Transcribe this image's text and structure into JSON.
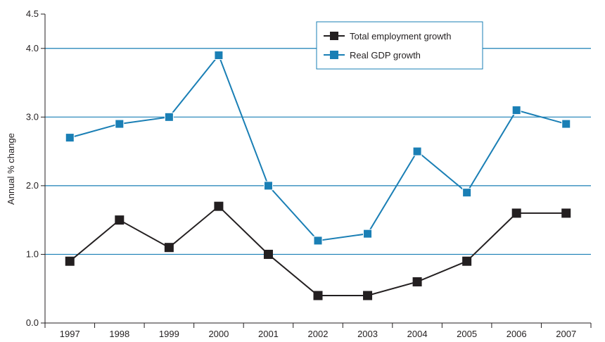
{
  "chart_data": {
    "type": "line",
    "title": "",
    "xlabel": "",
    "ylabel": "Annual % change",
    "categories": [
      "1997",
      "1998",
      "1999",
      "2000",
      "2001",
      "2002",
      "2003",
      "2004",
      "2005",
      "2006",
      "2007"
    ],
    "ylim": [
      0,
      4.5
    ],
    "yticks": [
      "0.0",
      "1.0",
      "2.0",
      "3.0",
      "4.0",
      "4.5"
    ],
    "grid": true,
    "legend_position": "top-right",
    "series": [
      {
        "name": "Total employment growth",
        "color": "#231f20",
        "values": [
          0.9,
          1.5,
          1.1,
          1.7,
          1.0,
          0.4,
          0.4,
          0.6,
          0.9,
          1.6,
          1.6
        ]
      },
      {
        "name": "Real GDP growth",
        "color": "#1a7fb5",
        "values": [
          2.7,
          2.9,
          3.0,
          3.9,
          2.0,
          1.2,
          1.3,
          2.5,
          1.9,
          3.1,
          2.9
        ]
      }
    ],
    "gridline_color": "#1a7fb5"
  }
}
